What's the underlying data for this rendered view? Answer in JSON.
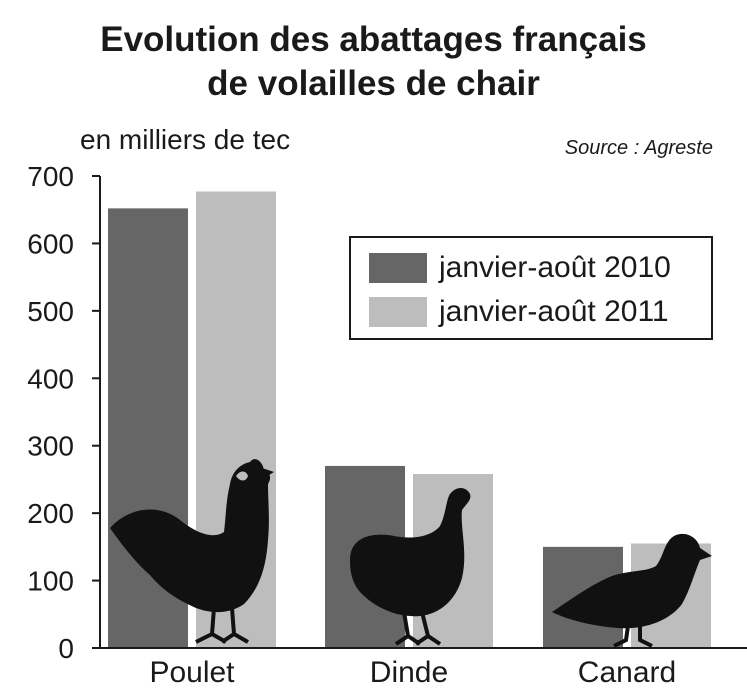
{
  "chart_data": {
    "type": "bar",
    "title": "Evolution des abattages français de volailles de chair",
    "title_lines": [
      "Evolution des abattages français",
      "de volailles de chair"
    ],
    "ylabel": "en milliers de tec",
    "source": "Source : Agreste",
    "categories": [
      "Poulet",
      "Dinde",
      "Canard"
    ],
    "series": [
      {
        "name": "janvier-août 2010",
        "color": "#666666",
        "values": [
          652,
          270,
          150
        ]
      },
      {
        "name": "janvier-août 2011",
        "color": "#bdbdbd",
        "values": [
          677,
          258,
          155
        ]
      }
    ],
    "ylim": [
      0,
      700
    ],
    "yticks": [
      0,
      100,
      200,
      300,
      400,
      500,
      600,
      700
    ],
    "grid": false,
    "legend_position": "top-right",
    "icons": [
      "rooster-icon",
      "turkey-icon",
      "duck-icon"
    ]
  }
}
